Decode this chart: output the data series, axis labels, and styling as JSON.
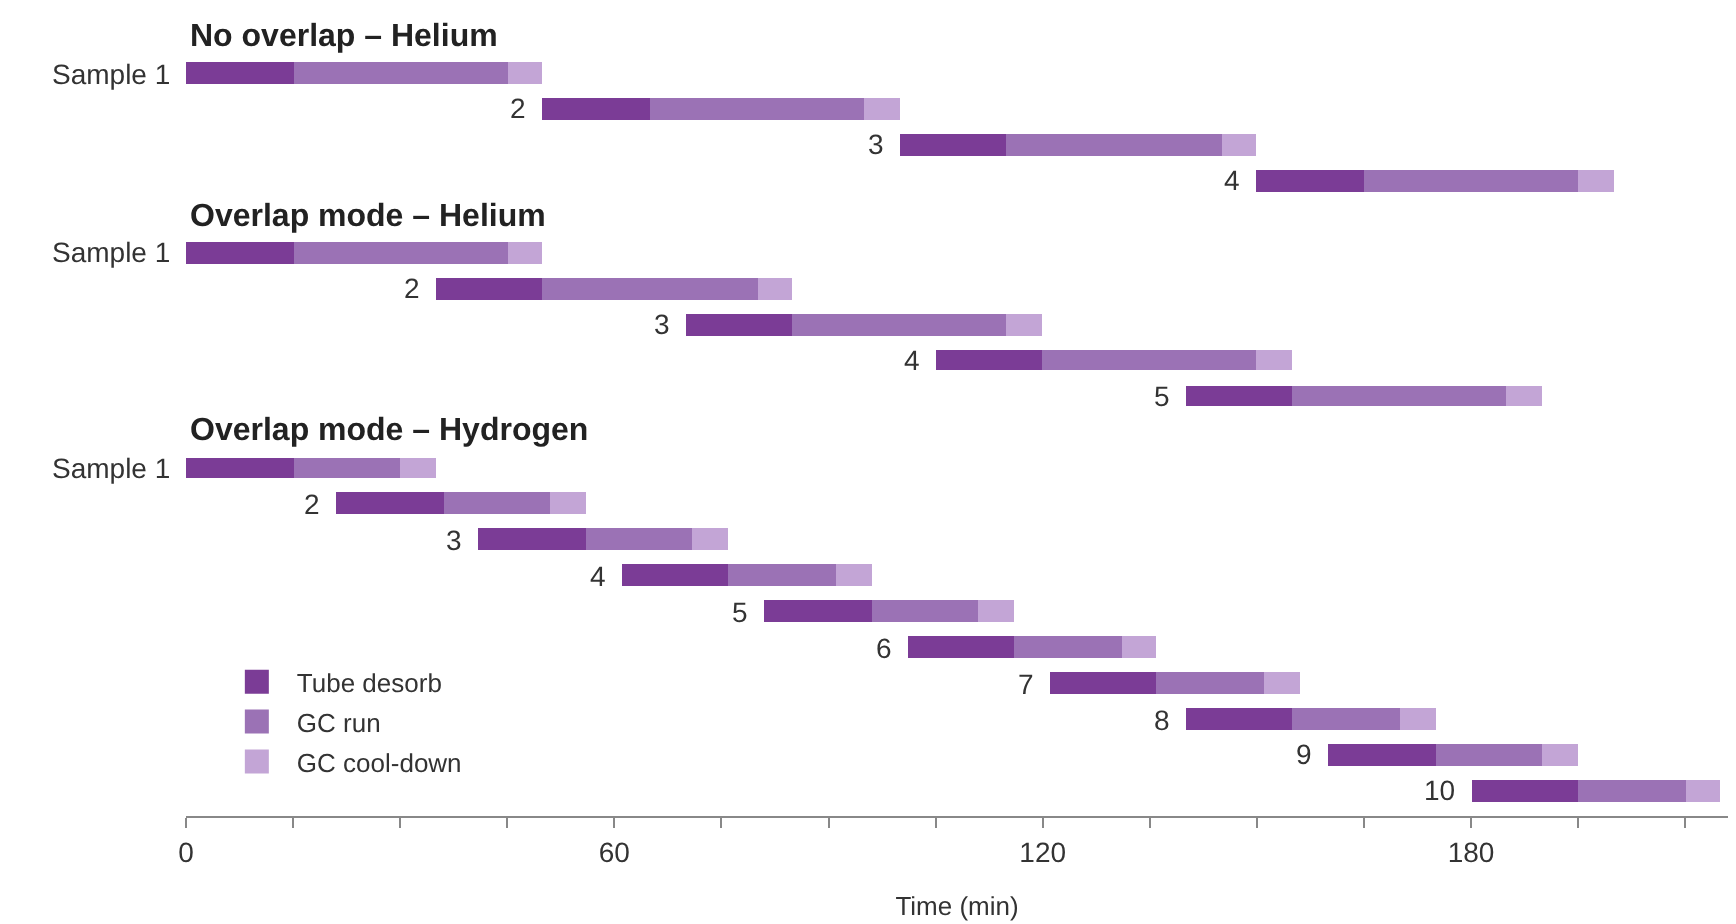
{
  "chart_data": {
    "type": "bar",
    "orientation": "horizontal",
    "categories": [
      "No overlap – Helium",
      "Sample 1",
      "2",
      "3",
      "4",
      "Overlap mode – Helium",
      "Sample 1",
      "2",
      "3",
      "4",
      "5",
      "Overlap mode – Hydrogen",
      "Sample 1",
      "2",
      "3",
      "4",
      "5",
      "6",
      "7",
      "8",
      "9",
      "10"
    ],
    "series": [
      {
        "name": "Tube desorb",
        "color": "#7b3c96",
        "base": [
          null,
          0,
          50,
          100,
          150,
          null,
          0,
          35,
          70,
          105,
          140,
          null,
          0,
          21,
          41,
          61,
          81,
          101,
          121,
          140,
          160,
          180
        ],
        "values": [
          null,
          15,
          15,
          15,
          15,
          null,
          15,
          15,
          15,
          15,
          15,
          null,
          15,
          15,
          15,
          15,
          15,
          15,
          15,
          15,
          15,
          15
        ]
      },
      {
        "name": "GC run",
        "color": "#9b72b5",
        "base": [
          null,
          15,
          65,
          115,
          165,
          null,
          15,
          50,
          85,
          120,
          155,
          null,
          15,
          36,
          56,
          76,
          96,
          116,
          136,
          155,
          175,
          195
        ],
        "values": [
          null,
          30,
          30,
          30,
          30,
          null,
          30,
          30,
          30,
          30,
          30,
          null,
          15,
          15,
          15,
          15,
          15,
          15,
          15,
          15,
          15,
          15
        ]
      },
      {
        "name": "GC cool-down",
        "color": "#c3a5d6",
        "base": [
          null,
          45,
          95,
          145,
          195,
          null,
          45,
          80,
          115,
          150,
          185,
          null,
          30,
          51,
          71,
          91,
          111,
          131,
          151,
          170,
          190,
          210
        ],
        "values": [
          null,
          5,
          5,
          5,
          5,
          null,
          5,
          5,
          5,
          5,
          5,
          null,
          5,
          5,
          5,
          5,
          5,
          5,
          5,
          5,
          5,
          5
        ]
      }
    ],
    "xlabel": "Time (min)",
    "xlim": [
      0,
      216
    ],
    "xticks": [
      0,
      {
        "value": 15,
        "label": null
      },
      {
        "value": 30,
        "label": null
      },
      {
        "value": 45,
        "label": null
      },
      60,
      {
        "value": 75,
        "label": null
      },
      {
        "value": 90,
        "label": null
      },
      {
        "value": 105,
        "label": null
      },
      120,
      {
        "value": 135,
        "label": null
      },
      {
        "value": 150,
        "label": null
      },
      {
        "value": 165,
        "label": null
      },
      180,
      {
        "value": 195,
        "label": null
      },
      {
        "value": 210,
        "label": null
      }
    ],
    "legend": "bottom left"
  }
}
